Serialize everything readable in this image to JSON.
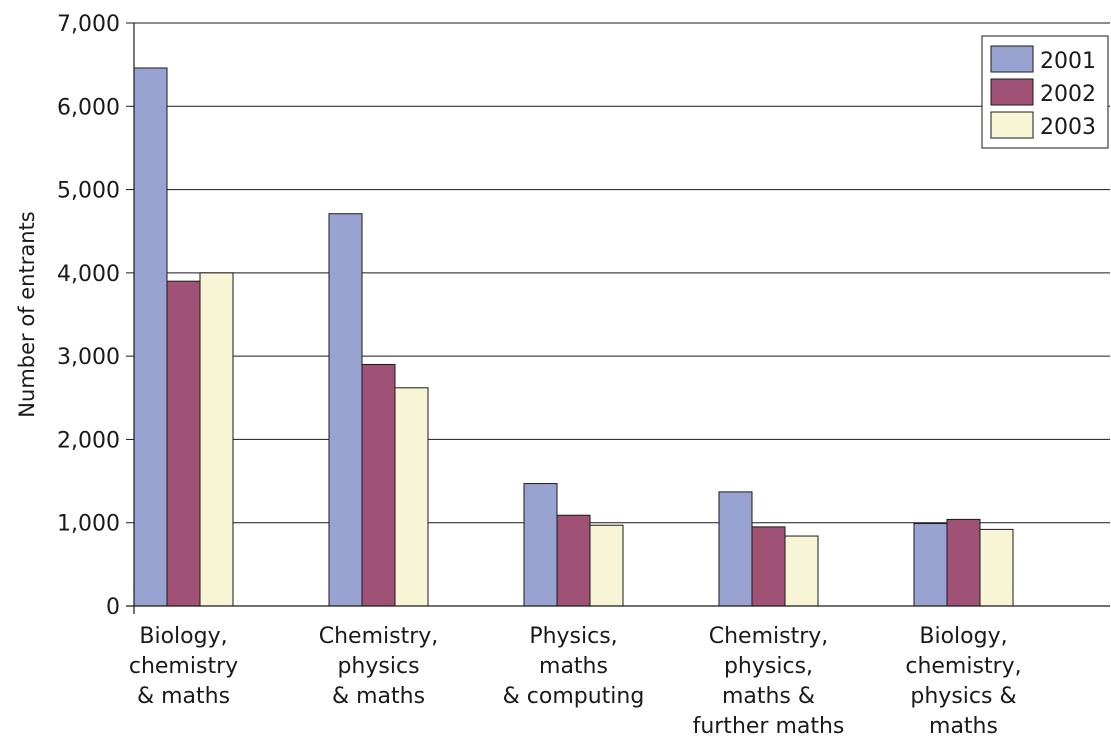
{
  "chart_data": {
    "type": "bar",
    "title": "",
    "xlabel": "",
    "ylabel": "Number of entrants",
    "ylim": [
      0,
      7000
    ],
    "yticks": [
      0,
      1000,
      2000,
      3000,
      4000,
      5000,
      6000,
      7000
    ],
    "ytick_labels": [
      "0",
      "1,000",
      "2,000",
      "3,000",
      "4,000",
      "5,000",
      "6,000",
      "7,000"
    ],
    "grid": "horizontal",
    "legend_position": "top-right",
    "categories": [
      [
        "Biology,",
        "chemistry",
        "& maths"
      ],
      [
        "Chemistry,",
        "physics",
        "& maths"
      ],
      [
        "Physics,",
        "maths",
        "& computing"
      ],
      [
        "Chemistry,",
        "physics,",
        "maths &",
        "further maths"
      ],
      [
        "Biology,",
        "chemistry,",
        "physics &",
        "maths"
      ]
    ],
    "series": [
      {
        "name": "2001",
        "color": "#99a3d2",
        "values": [
          6460,
          4710,
          1470,
          1370,
          990
        ]
      },
      {
        "name": "2002",
        "color": "#a05276",
        "values": [
          3900,
          2900,
          1090,
          950,
          1040
        ]
      },
      {
        "name": "2003",
        "color": "#f7f5d6",
        "values": [
          4000,
          2620,
          970,
          840,
          920
        ]
      }
    ]
  }
}
